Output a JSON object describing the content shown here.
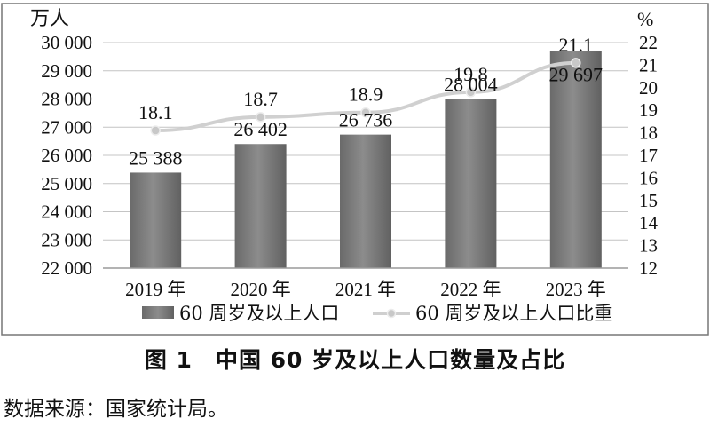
{
  "chart_data": {
    "type": "bar",
    "categories": [
      "2019 年",
      "2020 年",
      "2021 年",
      "2022 年",
      "2023 年"
    ],
    "left_axis": {
      "unit": "万人",
      "ylim": [
        22000,
        30000
      ],
      "ticks": [
        22000,
        23000,
        24000,
        25000,
        26000,
        27000,
        28000,
        29000,
        30000
      ],
      "tick_labels": [
        "22 000",
        "23 000",
        "24 000",
        "25 000",
        "26 000",
        "27 000",
        "28 000",
        "29 000",
        "30 000"
      ]
    },
    "right_axis": {
      "unit": "%",
      "ylim": [
        12,
        22
      ],
      "ticks": [
        12,
        13,
        14,
        15,
        16,
        17,
        18,
        19,
        20,
        21,
        22
      ],
      "tick_labels": [
        "12",
        "13",
        "14",
        "15",
        "16",
        "17",
        "18",
        "19",
        "20",
        "21",
        "22"
      ]
    },
    "series": [
      {
        "name": "60 周岁及以上人口",
        "type": "bar",
        "axis": "left",
        "values": [
          25388,
          26402,
          26736,
          28004,
          29697
        ],
        "labels": [
          "25 388",
          "26 402",
          "26 736",
          "28 004",
          "29 697"
        ]
      },
      {
        "name": "60 周岁及以上人口比重",
        "type": "line",
        "axis": "right",
        "values": [
          18.1,
          18.7,
          18.9,
          19.8,
          21.1
        ],
        "labels": [
          "18.1",
          "18.7",
          "18.9",
          "19.8",
          "21.1"
        ]
      }
    ],
    "grid": true,
    "legend": "bottom"
  },
  "caption": "图 1　中国 60 岁及以上人口数量及占比",
  "source": "数据来源：国家统计局。"
}
